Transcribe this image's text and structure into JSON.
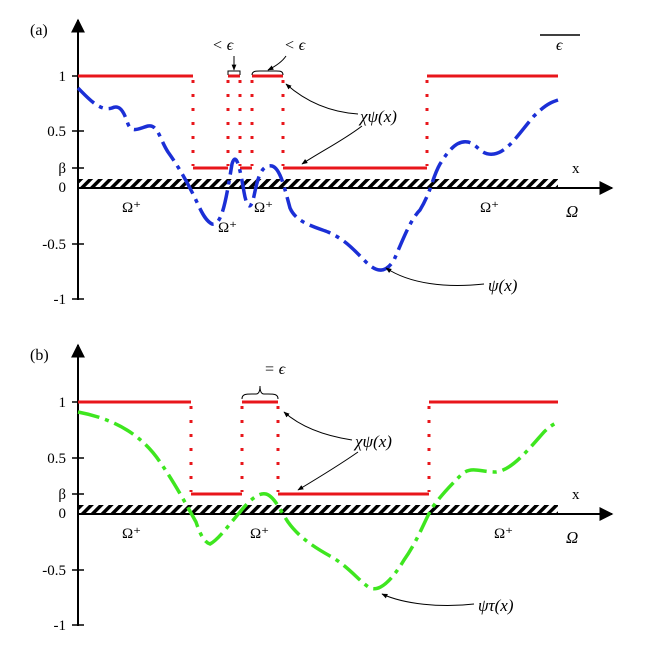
{
  "panels": [
    {
      "label": "(a)",
      "y_ticks": [
        "1",
        "0.5",
        "β",
        "0",
        "-0.5",
        "-1"
      ],
      "x_axis_label": "x",
      "domain_label": "Ω",
      "region_labels": [
        "Ω⁺",
        "Ω⁺",
        "Ω⁺",
        "Ω⁺"
      ],
      "chi_label": "χψ(x)",
      "psi_label": "ψ(x)",
      "gap_labels": [
        "< ϵ",
        "< ϵ"
      ],
      "scale_label": "ϵ"
    },
    {
      "label": "(b)",
      "y_ticks": [
        "1",
        "0.5",
        "β",
        "0",
        "-0.5",
        "-1"
      ],
      "x_axis_label": "x",
      "domain_label": "Ω",
      "region_labels": [
        "Ω⁺",
        "Ω⁺",
        "Ω⁺"
      ],
      "chi_label": "χψ(x)",
      "psi_label": "ψτ(x)",
      "gap_labels": [
        "= ϵ"
      ]
    }
  ],
  "colors": {
    "indicator": "#e8161b",
    "psi_a": "#1b2fd6",
    "psi_b": "#3ee61f",
    "axes": "#000000"
  }
}
